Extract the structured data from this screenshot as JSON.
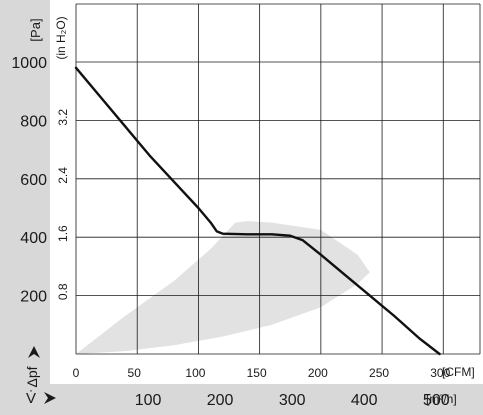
{
  "chart_data": {
    "type": "line",
    "title": "",
    "colors": {
      "band": "#e2e2e2",
      "curve": "#111111",
      "grid": "#1a1a1a",
      "panel": "#d8d8d8",
      "text": "#1a1a1a"
    },
    "y_axis_pa": {
      "unit": "[Pa]",
      "label": "Δpf",
      "range": [
        0,
        1000
      ],
      "ticks": [
        {
          "value": 200,
          "label": "200"
        },
        {
          "value": 400,
          "label": "400"
        },
        {
          "value": 600,
          "label": "600"
        },
        {
          "value": 800,
          "label": "800"
        },
        {
          "value": 1000,
          "label": "1000"
        }
      ]
    },
    "y_axis_inh2o": {
      "unit": "(in H₂O)",
      "ticks": [
        {
          "value": 0.8,
          "label": "0.8"
        },
        {
          "value": 1.6,
          "label": "1.6"
        },
        {
          "value": 2.4,
          "label": "2.4"
        },
        {
          "value": 3.2,
          "label": "3.2"
        }
      ]
    },
    "x_axis_cfm": {
      "unit": "[CFM]",
      "range": [
        0,
        330
      ],
      "ticks": [
        {
          "value": 0,
          "label": "0"
        },
        {
          "value": 50,
          "label": "50"
        },
        {
          "value": 100,
          "label": "100"
        },
        {
          "value": 150,
          "label": "150"
        },
        {
          "value": 200,
          "label": "200"
        },
        {
          "value": 250,
          "label": "250"
        },
        {
          "value": 300,
          "label": "300"
        }
      ]
    },
    "x_axis_m3h": {
      "unit": "[m³/h]",
      "label": "V̇",
      "ticks": [
        {
          "value": 100,
          "label": "100"
        },
        {
          "value": 200,
          "label": "200"
        },
        {
          "value": 300,
          "label": "300"
        },
        {
          "value": 400,
          "label": "400"
        },
        {
          "value": 500,
          "label": "500"
        }
      ]
    },
    "series": [
      {
        "x": [
          0,
          20,
          40,
          60,
          80,
          100,
          110,
          115,
          120,
          140,
          160,
          175,
          185,
          200,
          220,
          240,
          260,
          280,
          297
        ],
        "y": [
          980,
          880,
          780,
          680,
          590,
          500,
          450,
          420,
          412,
          410,
          410,
          405,
          390,
          340,
          270,
          200,
          130,
          55,
          0
        ]
      }
    ],
    "band": {
      "x": [
        0,
        40,
        80,
        110,
        130,
        140,
        160,
        200,
        230,
        240,
        230,
        200,
        160,
        120,
        80,
        40,
        0
      ],
      "y": [
        0,
        130,
        250,
        360,
        450,
        455,
        450,
        425,
        340,
        280,
        240,
        160,
        100,
        60,
        30,
        10,
        0
      ]
    }
  }
}
